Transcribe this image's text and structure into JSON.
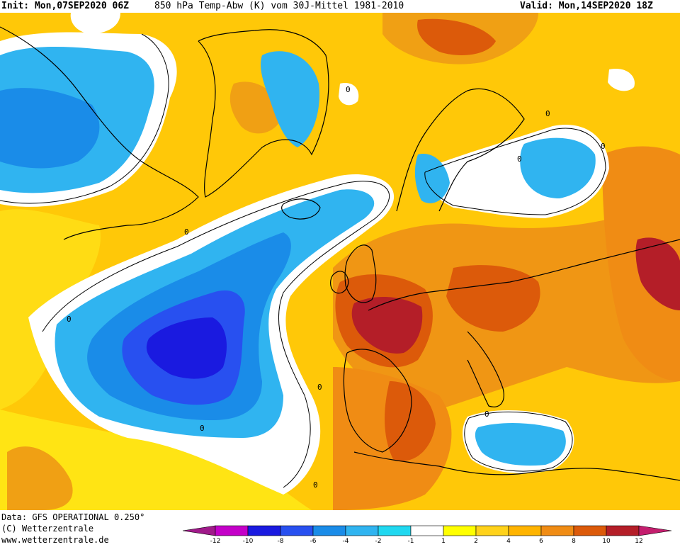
{
  "header": {
    "init": "Init: Mon,07SEP2020 06Z",
    "title": "850 hPa Temp-Abw (K) vom 30J-Mittel 1981-2010",
    "valid": "Valid: Mon,14SEP2020 18Z"
  },
  "footer": {
    "data_source": "Data: GFS OPERATIONAL 0.250°",
    "copyright": "(C) Wetterzentrale",
    "url": "www.wetterzentrale.de"
  },
  "legend": {
    "ticks": [
      "-12",
      "-10",
      "-8",
      "-6",
      "-4",
      "-2",
      "-1",
      "1",
      "2",
      "4",
      "6",
      "8",
      "10",
      "12"
    ],
    "colors": [
      "#a01a8a",
      "#c400c8",
      "#1a1ae0",
      "#2850f0",
      "#1a8ce8",
      "#30b4f0",
      "#20d8f0",
      "#ffffff",
      "#ffff00",
      "#ffd21a",
      "#ffb400",
      "#f08c14",
      "#dc5a0a",
      "#b41e28",
      "#c41e6e"
    ]
  },
  "contour_labels": [
    "0",
    "0",
    "0",
    "0",
    "0",
    "0",
    "0",
    "0",
    "0",
    "0"
  ],
  "map": {
    "base_color": "#ffc808",
    "anomaly_regions": [
      {
        "name": "cold-pool-atlantic",
        "level": "-10"
      },
      {
        "name": "cold-west-canada",
        "level": "-4"
      },
      {
        "name": "cold-greenland-east",
        "level": "-4"
      },
      {
        "name": "cold-scandinavia",
        "level": "-2"
      },
      {
        "name": "cold-western-med",
        "level": "-4"
      },
      {
        "name": "warm-france",
        "level": "10"
      },
      {
        "name": "warm-spain",
        "level": "8"
      },
      {
        "name": "warm-russia",
        "level": "10"
      }
    ]
  }
}
